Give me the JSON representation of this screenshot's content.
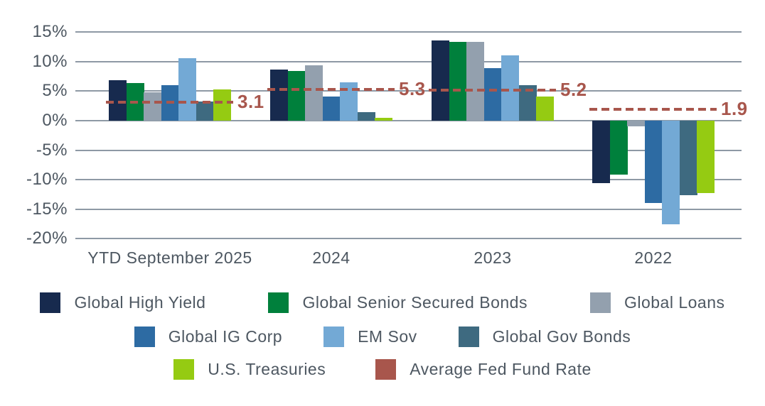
{
  "chart_data": {
    "type": "bar",
    "title": "",
    "categories": [
      "YTD September 2025",
      "2024",
      "2023",
      "2022"
    ],
    "series": [
      {
        "name": "Global High Yield",
        "color": "#172a4e",
        "values": [
          6.8,
          8.6,
          13.6,
          -10.6
        ]
      },
      {
        "name": "Global Senior Secured Bonds",
        "color": "#00803c",
        "values": [
          6.4,
          8.4,
          13.4,
          -9.2
        ]
      },
      {
        "name": "Global Loans",
        "color": "#93a0ae",
        "values": [
          4.8,
          9.4,
          13.3,
          -1.0
        ]
      },
      {
        "name": "Global IG Corp",
        "color": "#2d6ba3",
        "values": [
          6.0,
          4.1,
          8.9,
          -14.0
        ]
      },
      {
        "name": "EM Sov",
        "color": "#73a9d5",
        "values": [
          10.6,
          6.5,
          11.1,
          -17.6
        ]
      },
      {
        "name": "Global Gov Bonds",
        "color": "#3e6a80",
        "values": [
          3.2,
          1.5,
          6.0,
          -12.6
        ]
      },
      {
        "name": "U.S. Treasuries",
        "color": "#95cb12",
        "values": [
          5.3,
          0.5,
          4.1,
          -12.3
        ]
      }
    ],
    "overlay_line": {
      "name": "Average Fed Fund Rate",
      "color": "#a8564c",
      "style": "dashed",
      "values": [
        3.1,
        5.3,
        5.2,
        1.9
      ],
      "labels": [
        "3.1",
        "5.3",
        "5.2",
        "1.9"
      ]
    },
    "ylim": [
      -20,
      15
    ],
    "yticks": [
      15,
      10,
      5,
      0,
      -5,
      -10,
      -15,
      -20
    ],
    "ytick_labels": [
      "15%",
      "10%",
      "5%",
      "0%",
      "-5%",
      "-10%",
      "-15%",
      "-20%"
    ],
    "grid": true,
    "legend_position": "bottom",
    "legend_rows": [
      [
        "Global High Yield",
        "Global Senior Secured Bonds",
        "Global Loans"
      ],
      [
        "Global IG Corp",
        "EM Sov",
        "Global Gov Bonds"
      ],
      [
        "U.S. Treasuries",
        "Average Fed Fund Rate"
      ]
    ]
  },
  "style": {
    "grid_color": "#8e99a5",
    "axis_text_color": "#4d5761",
    "background": "#ffffff"
  }
}
